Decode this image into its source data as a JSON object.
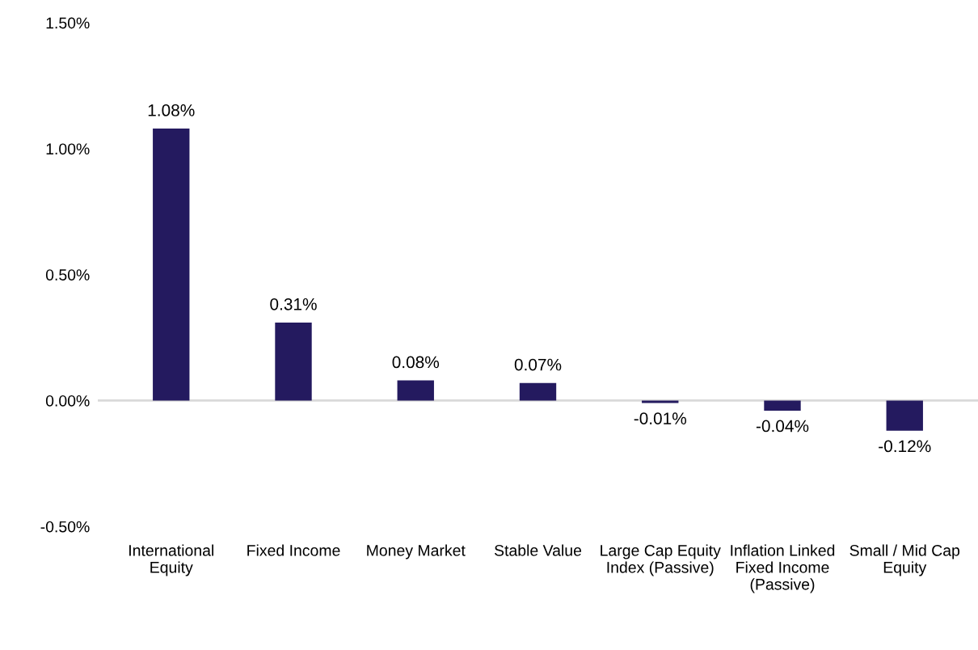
{
  "chart_data": {
    "type": "bar",
    "categories": [
      "International\nEquity",
      "Fixed Income",
      "Money Market",
      "Stable Value",
      "Large Cap Equity\nIndex (Passive)",
      "Inflation Linked\nFixed Income\n(Passive)",
      "Small / Mid Cap\nEquity"
    ],
    "values": [
      1.08,
      0.31,
      0.08,
      0.07,
      -0.01,
      -0.04,
      -0.12
    ],
    "value_labels": [
      "1.08%",
      "0.31%",
      "0.08%",
      "0.07%",
      "-0.01%",
      "-0.04%",
      "-0.12%"
    ],
    "color": "#241a5f",
    "ylim": [
      -0.5,
      1.5
    ],
    "yticks": [
      {
        "value": -0.5,
        "label": "-0.50%"
      },
      {
        "value": 0,
        "label": "0.00%"
      },
      {
        "value": 0.5,
        "label": "0.50%"
      },
      {
        "value": 1.0,
        "label": "1.00%"
      },
      {
        "value": 1.5,
        "label": "1.50%"
      }
    ],
    "ref_lines": [
      {
        "axis": "y",
        "value": 0,
        "color": "#d9d9d9"
      }
    ],
    "grid": false,
    "legend": false
  }
}
